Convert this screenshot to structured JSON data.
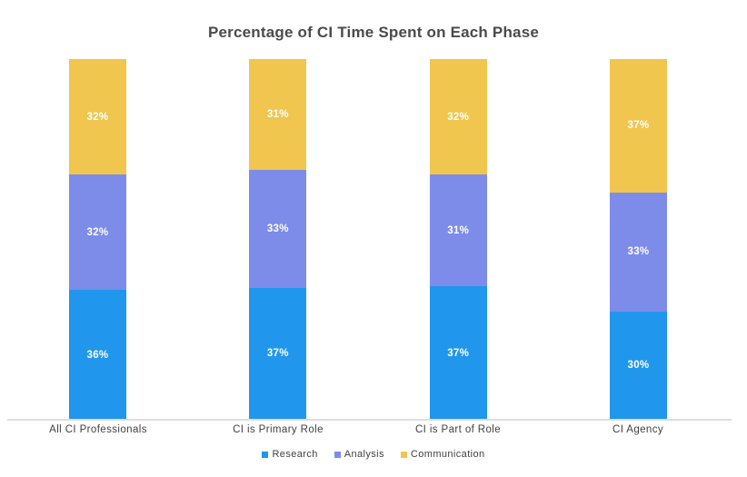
{
  "title": "Percentage of CI Time Spent on Each Phase",
  "chart_data": {
    "type": "bar",
    "stacked": true,
    "title": "Percentage of CI Time Spent on Each Phase",
    "categories": [
      "All CI Professionals",
      "CI is Primary Role",
      "CI is Part of Role",
      "CI Agency"
    ],
    "series": [
      {
        "name": "Research",
        "color": "#2196ED",
        "values": [
          36,
          37,
          37,
          30
        ]
      },
      {
        "name": "Analysis",
        "color": "#7D8CE9",
        "values": [
          32,
          33,
          31,
          33
        ]
      },
      {
        "name": "Communication",
        "color": "#F0C64F",
        "values": [
          32,
          31,
          32,
          37
        ]
      }
    ],
    "value_labels": [
      [
        "36%",
        "37%",
        "37%",
        "30%"
      ],
      [
        "32%",
        "33%",
        "31%",
        "33%"
      ],
      [
        "32%",
        "31%",
        "32%",
        "37%"
      ]
    ],
    "xlabel": "",
    "ylabel": "",
    "ylim": [
      0,
      100
    ],
    "grid": false,
    "legend_position": "bottom"
  },
  "colors": {
    "background": "#ffffff",
    "title_text": "#4a4a4a",
    "label_text": "#3f3f3f",
    "value_label_text": "#ffffff",
    "axis_line": "#dedede"
  }
}
